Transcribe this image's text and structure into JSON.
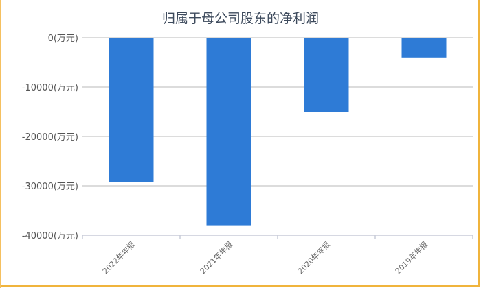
{
  "chart_data": {
    "type": "bar",
    "title": "归属于母公司股东的净利润",
    "categories": [
      "2022年年报",
      "2021年年报",
      "2020年年报",
      "2019年年报"
    ],
    "values": [
      -29300,
      -38000,
      -15000,
      -4000
    ],
    "unit": "万元",
    "ylim": [
      -40000,
      0
    ],
    "yticks": [
      0,
      -10000,
      -20000,
      -30000,
      -40000
    ],
    "ytick_labels": [
      "0(万元)",
      "-10000(万元)",
      "-20000(万元)",
      "-30000(万元)",
      "-40000(万元)"
    ],
    "grid": true,
    "bar_color": "#2e7bd6",
    "legend": "none"
  }
}
